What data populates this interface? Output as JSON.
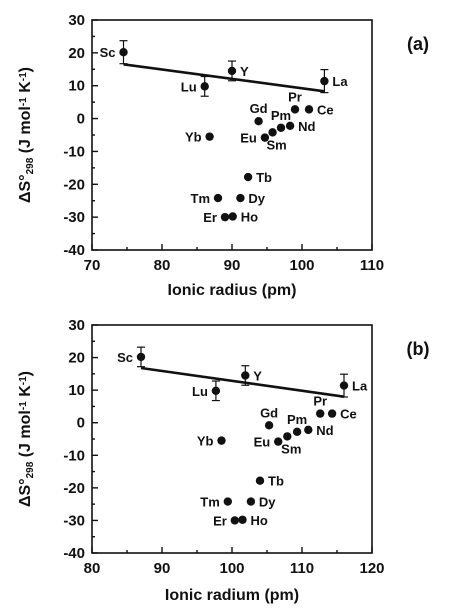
{
  "chart_data": [
    {
      "type": "scatter",
      "panel_label": "(a)",
      "xlabel": "Ionic radius (pm)",
      "ylabel_parts": [
        "ΔS°",
        "298",
        " (J mol",
        "-1",
        " K",
        "-1",
        ")"
      ],
      "xlim": [
        70,
        110
      ],
      "ylim": [
        -40,
        30
      ],
      "xticks": [
        70,
        80,
        90,
        100,
        110
      ],
      "yticks": [
        -40,
        -30,
        -20,
        -10,
        0,
        10,
        20,
        30
      ],
      "fit_line": {
        "x": [
          74.5,
          103.2
        ],
        "y": [
          16.5,
          8.3
        ]
      },
      "points": [
        {
          "label": "Sc",
          "x": 74.5,
          "y": 20.2,
          "err": 3.5,
          "label_side": "left"
        },
        {
          "label": "Lu",
          "x": 86.1,
          "y": 9.8,
          "err": 3.0,
          "label_side": "left"
        },
        {
          "label": "Y",
          "x": 90.0,
          "y": 14.5,
          "err": 3.0,
          "label_side": "right"
        },
        {
          "label": "La",
          "x": 103.2,
          "y": 11.4,
          "err": 3.5,
          "label_side": "right"
        },
        {
          "label": "Yb",
          "x": 86.8,
          "y": -5.5,
          "label_side": "left"
        },
        {
          "label": "Tm",
          "x": 88.0,
          "y": -24.2,
          "label_side": "left"
        },
        {
          "label": "Er",
          "x": 89.0,
          "y": -30.0,
          "label_side": "left"
        },
        {
          "label": "Ho",
          "x": 90.1,
          "y": -29.8,
          "label_side": "right"
        },
        {
          "label": "Dy",
          "x": 91.2,
          "y": -24.2,
          "label_side": "right"
        },
        {
          "label": "Tb",
          "x": 92.3,
          "y": -17.8,
          "label_side": "right"
        },
        {
          "label": "Gd",
          "x": 93.8,
          "y": -0.8,
          "label_side": "above"
        },
        {
          "label": "Eu",
          "x": 94.7,
          "y": -5.8,
          "label_side": "left"
        },
        {
          "label": "Sm",
          "x": 95.8,
          "y": -4.2,
          "label_side": "below"
        },
        {
          "label": "Pm",
          "x": 97.0,
          "y": -2.8,
          "label_side": "above"
        },
        {
          "label": "Nd",
          "x": 98.3,
          "y": -2.2,
          "label_side": "right"
        },
        {
          "label": "Pr",
          "x": 99.0,
          "y": 2.8,
          "label_side": "above"
        },
        {
          "label": "Ce",
          "x": 101.0,
          "y": 2.8,
          "label_side": "right"
        }
      ]
    },
    {
      "type": "scatter",
      "panel_label": "(b)",
      "xlabel": "Ionic radium (pm)",
      "ylabel_parts": [
        "ΔS°",
        "298",
        " (J mol",
        "-1",
        " K",
        "-1",
        ")"
      ],
      "xlim": [
        80,
        120
      ],
      "ylim": [
        -40,
        30
      ],
      "xticks": [
        80,
        90,
        100,
        110,
        120
      ],
      "yticks": [
        -40,
        -30,
        -20,
        -10,
        0,
        10,
        20,
        30
      ],
      "fit_line": {
        "x": [
          87.0,
          116.0
        ],
        "y": [
          16.8,
          8.0
        ]
      },
      "points": [
        {
          "label": "Sc",
          "x": 87.0,
          "y": 20.2,
          "err": 3.0,
          "label_side": "left"
        },
        {
          "label": "Lu",
          "x": 97.7,
          "y": 9.8,
          "err": 3.0,
          "label_side": "left"
        },
        {
          "label": "Y",
          "x": 101.9,
          "y": 14.5,
          "err": 3.0,
          "label_side": "right"
        },
        {
          "label": "La",
          "x": 116.0,
          "y": 11.4,
          "err": 3.5,
          "label_side": "right"
        },
        {
          "label": "Yb",
          "x": 98.5,
          "y": -5.5,
          "label_side": "left"
        },
        {
          "label": "Tm",
          "x": 99.4,
          "y": -24.2,
          "label_side": "left"
        },
        {
          "label": "Er",
          "x": 100.4,
          "y": -30.0,
          "label_side": "left"
        },
        {
          "label": "Ho",
          "x": 101.5,
          "y": -29.8,
          "label_side": "right"
        },
        {
          "label": "Dy",
          "x": 102.7,
          "y": -24.2,
          "label_side": "right"
        },
        {
          "label": "Tb",
          "x": 104.0,
          "y": -17.8,
          "label_side": "right"
        },
        {
          "label": "Gd",
          "x": 105.3,
          "y": -0.8,
          "label_side": "above"
        },
        {
          "label": "Eu",
          "x": 106.6,
          "y": -5.8,
          "label_side": "left"
        },
        {
          "label": "Sm",
          "x": 107.9,
          "y": -4.2,
          "label_side": "below"
        },
        {
          "label": "Pm",
          "x": 109.3,
          "y": -2.8,
          "label_side": "above"
        },
        {
          "label": "Nd",
          "x": 110.9,
          "y": -2.2,
          "label_side": "right"
        },
        {
          "label": "Pr",
          "x": 112.6,
          "y": 2.8,
          "label_side": "above"
        },
        {
          "label": "Ce",
          "x": 114.3,
          "y": 2.8,
          "label_side": "right"
        }
      ]
    }
  ]
}
